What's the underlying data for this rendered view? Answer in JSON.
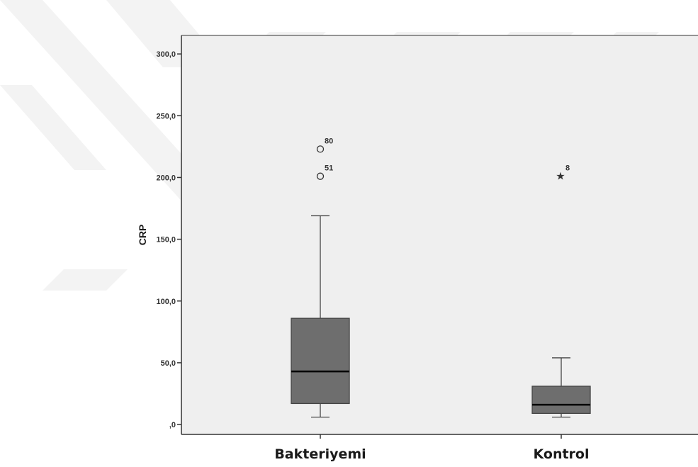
{
  "chart_data": {
    "type": "boxplot",
    "ylabel": "CRP",
    "xlabel": "",
    "ylim": [
      -8,
      315
    ],
    "y_ticks": [
      0,
      50,
      100,
      150,
      200,
      250,
      300
    ],
    "y_tick_labels": [
      ",0",
      "50,0",
      "100,0",
      "150,0",
      "200,0",
      "250,0",
      "300,0"
    ],
    "categories": [
      "Bakteriyemi",
      "Kontrol"
    ],
    "boxes": [
      {
        "category": "Bakteriyemi",
        "whisker_low": 6,
        "q1": 17,
        "median": 43,
        "q3": 86,
        "whisker_high": 169,
        "outliers": [
          {
            "value": 223,
            "label": "80",
            "marker": "circle"
          },
          {
            "value": 201,
            "label": "51",
            "marker": "circle"
          }
        ]
      },
      {
        "category": "Kontrol",
        "whisker_low": 6,
        "q1": 9,
        "median": 16,
        "q3": 31,
        "whisker_high": 54,
        "outliers": [
          {
            "value": 201,
            "label": "8",
            "marker": "star"
          }
        ]
      }
    ],
    "grid": false,
    "colors": {
      "plot_background": "#efefef",
      "box_fill": "#6e6e6e",
      "line": "#444444",
      "median": "#000000",
      "watermark": "#f3f3f3"
    }
  }
}
